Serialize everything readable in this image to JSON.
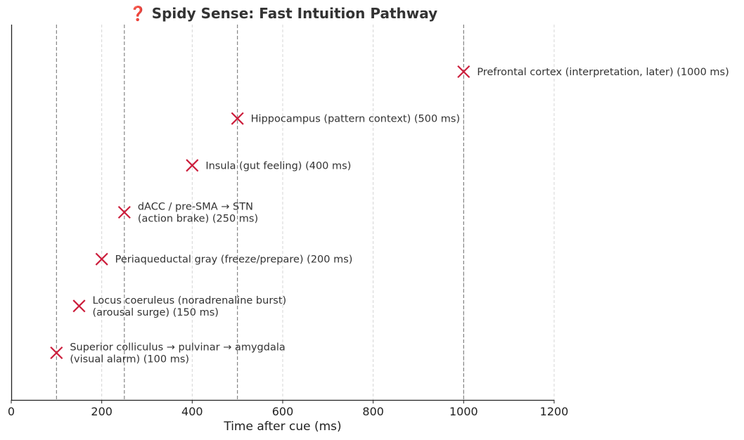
{
  "chart_data": {
    "type": "scatter",
    "title": "❓ Spidy Sense: Fast Intuition Pathway",
    "xlabel": "Time after cue (ms)",
    "ylabel": "",
    "xlim": [
      0,
      1200
    ],
    "xticks": [
      "0",
      "200",
      "400",
      "600",
      "800",
      "1000",
      "1200"
    ],
    "xtick_values": [
      0,
      200,
      400,
      600,
      800,
      1000,
      1200
    ],
    "grid": "vertical, dashed light gray",
    "reference_lines_x": [
      100,
      250,
      500,
      1000
    ],
    "marker": "x",
    "marker_color": "#cc1e3c",
    "points": [
      {
        "x": 100,
        "label_lines": [
          "Superior colliculus → pulvinar → amygdala",
          "(visual alarm)  (100 ms)"
        ]
      },
      {
        "x": 150,
        "label_lines": [
          "Locus coeruleus (noradrenaline burst)",
          "(arousal surge)  (150 ms)"
        ]
      },
      {
        "x": 200,
        "label_lines": [
          "Periaqueductal gray (freeze/prepare)  (200 ms)"
        ]
      },
      {
        "x": 250,
        "label_lines": [
          "dACC / pre-SMA → STN",
          "(action brake)  (250 ms)"
        ]
      },
      {
        "x": 400,
        "label_lines": [
          "Insula (gut feeling)  (400 ms)"
        ]
      },
      {
        "x": 500,
        "label_lines": [
          "Hippocampus (pattern context)  (500 ms)"
        ]
      },
      {
        "x": 1000,
        "label_lines": [
          "Prefrontal cortex (interpretation, later)  (1000 ms)"
        ]
      }
    ]
  }
}
